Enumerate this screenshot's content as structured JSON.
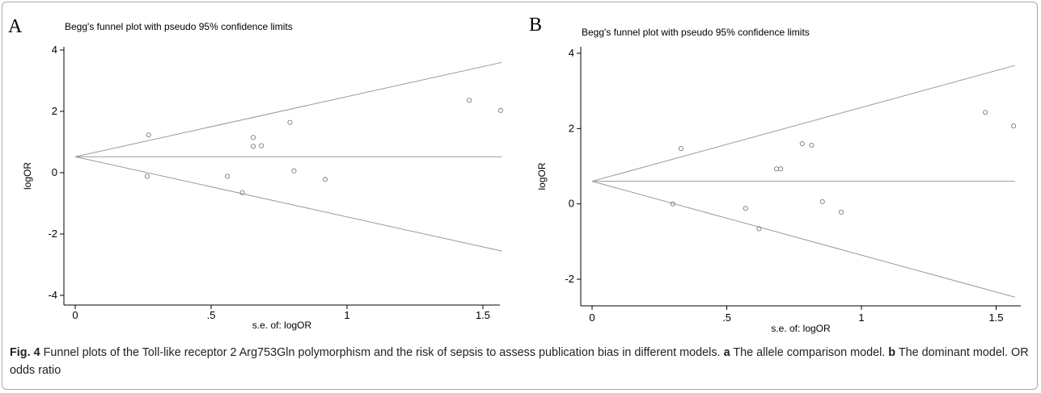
{
  "chart_data": [
    {
      "panel": "A",
      "type": "scatter",
      "title": "Begg's funnel plot with pseudo 95% confidence limits",
      "xlabel": "s.e. of: logOR",
      "ylabel": "logOR",
      "xlim": [
        0,
        1.57
      ],
      "ylim": [
        -4.2,
        4.2
      ],
      "xticks": [
        0,
        0.5,
        1,
        1.5
      ],
      "xtick_labels": [
        "0",
        ".5",
        "1",
        "1.5"
      ],
      "yticks": [
        -4,
        -2,
        0,
        2,
        4
      ],
      "ytick_labels": [
        "-4",
        "-2",
        "0",
        "2",
        "4"
      ],
      "pooled_logOR": 0.52,
      "points": [
        {
          "x": 0.27,
          "y": 1.23
        },
        {
          "x": 0.265,
          "y": -0.12
        },
        {
          "x": 0.56,
          "y": -0.12
        },
        {
          "x": 0.615,
          "y": -0.65
        },
        {
          "x": 0.655,
          "y": 1.15
        },
        {
          "x": 0.655,
          "y": 0.86
        },
        {
          "x": 0.685,
          "y": 0.88
        },
        {
          "x": 0.79,
          "y": 1.64
        },
        {
          "x": 0.805,
          "y": 0.06
        },
        {
          "x": 0.92,
          "y": -0.22
        },
        {
          "x": 1.45,
          "y": 2.36
        },
        {
          "x": 1.565,
          "y": 2.03
        }
      ]
    },
    {
      "panel": "B",
      "type": "scatter",
      "title": "Begg's funnel plot with pseudo 95% confidence limits",
      "xlabel": "s.e. of: logOR",
      "ylabel": "logOR",
      "xlim": [
        0,
        1.57
      ],
      "ylim": [
        -2.7,
        4.2
      ],
      "xticks": [
        0,
        0.5,
        1,
        1.5
      ],
      "xtick_labels": [
        "0",
        ".5",
        "1",
        "1.5"
      ],
      "yticks": [
        -2,
        0,
        2,
        4
      ],
      "ytick_labels": [
        "-2",
        "0",
        "2",
        "4"
      ],
      "pooled_logOR": 0.6,
      "points": [
        {
          "x": 0.33,
          "y": 1.47
        },
        {
          "x": 0.3,
          "y": 0.0
        },
        {
          "x": 0.57,
          "y": -0.12
        },
        {
          "x": 0.62,
          "y": -0.66
        },
        {
          "x": 0.685,
          "y": 0.93
        },
        {
          "x": 0.7,
          "y": 0.93
        },
        {
          "x": 0.78,
          "y": 1.6
        },
        {
          "x": 0.815,
          "y": 1.56
        },
        {
          "x": 0.855,
          "y": 0.06
        },
        {
          "x": 0.925,
          "y": -0.22
        },
        {
          "x": 1.46,
          "y": 2.43
        },
        {
          "x": 1.565,
          "y": 2.07
        }
      ]
    }
  ],
  "caption": {
    "fig_label": "Fig. 4",
    "text_1": " Funnel plots of the Toll-like receptor 2 Arg753Gln polymorphism and the risk of sepsis to assess publication bias in different models. ",
    "label_a": "a",
    "text_2": " The allele comparison model. ",
    "label_b": "b",
    "text_3": " The dominant model. OR odds ratio"
  }
}
